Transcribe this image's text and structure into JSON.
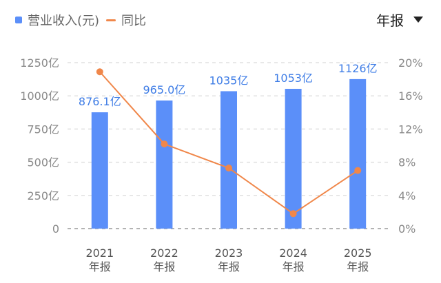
{
  "legend": {
    "bar_label": "营业收入(元)",
    "line_label": "同比"
  },
  "period_selector": {
    "label": "年报"
  },
  "colors": {
    "bar": "#5b8ff9",
    "line": "#f0874a",
    "grid": "#e0e0e0"
  },
  "chart_data": {
    "type": "bar",
    "categories": [
      "2021\n年报",
      "2022\n年报",
      "2023\n年报",
      "2024\n年报",
      "2025\n年报"
    ],
    "series": [
      {
        "name": "营业收入(元)",
        "type": "bar",
        "axis": "left",
        "values": [
          876.1,
          965.0,
          1035,
          1053,
          1126
        ],
        "labels": [
          "876.1亿",
          "965.0亿",
          "1035亿",
          "1053亿",
          "1126亿"
        ]
      },
      {
        "name": "同比",
        "type": "line",
        "axis": "right",
        "values": [
          18.9,
          10.2,
          7.3,
          1.8,
          7.0
        ]
      }
    ],
    "y_left": {
      "ylim": [
        0,
        1250
      ],
      "ticks": [
        0,
        250,
        500,
        750,
        1000,
        1250
      ],
      "tick_labels": [
        "0",
        "250亿",
        "500亿",
        "750亿",
        "1000亿",
        "1250亿"
      ]
    },
    "y_right": {
      "ylim": [
        0,
        20
      ],
      "ticks": [
        0,
        4,
        8,
        12,
        16,
        20
      ],
      "tick_labels": [
        "0%",
        "4%",
        "8%",
        "12%",
        "16%",
        "20%"
      ]
    },
    "grid": true,
    "legend_position": "top-left"
  }
}
